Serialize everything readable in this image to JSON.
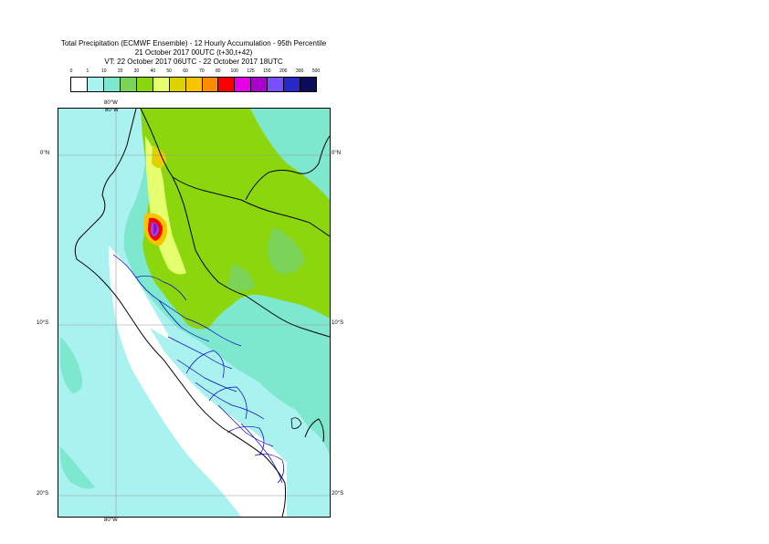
{
  "title": {
    "line1": "Total Precipitation (ECMWF Ensemble) - 12 Hourly Accumulation - 95th Percentile",
    "line2": "21 October 2017 00UTC (t+30,t+42)",
    "line3": "VT: 22 October 2017 06UTC - 22 October 2017 18UTC"
  },
  "legend": {
    "labels": [
      "0",
      "1",
      "10",
      "20",
      "30",
      "40",
      "50",
      "60",
      "70",
      "80",
      "100",
      "125",
      "150",
      "200",
      "300",
      "500"
    ],
    "colors": [
      "#ffffff",
      "#aaf2f0",
      "#7ee8cf",
      "#7bd357",
      "#8cd60d",
      "#e6ff6e",
      "#dcd300",
      "#f8c400",
      "#ff8c00",
      "#ff0000",
      "#e600e6",
      "#aa00cc",
      "#7850ff",
      "#2828c8",
      "#0c0c5a"
    ]
  },
  "axes": {
    "lon_top": "80°W",
    "lon_bottom": "80°W",
    "lat_right_0": "0°N",
    "lat_right_10": "10°S",
    "lat_right_20": "20°S",
    "lat_left_0": "0°N",
    "lat_left_10": "10°S",
    "lat_left_20": "20°S"
  },
  "map": {
    "ocean_color": "#aaf2f0",
    "light_land_color": "#7ee8cf",
    "green_color": "#8cd60d",
    "yellow_color": "#e6ff6e",
    "orange_color": "#f8c400",
    "red_color": "#ff0000",
    "purple_color": "#7850ff",
    "coast_color": "#000000",
    "province_color": "#0000cc"
  }
}
